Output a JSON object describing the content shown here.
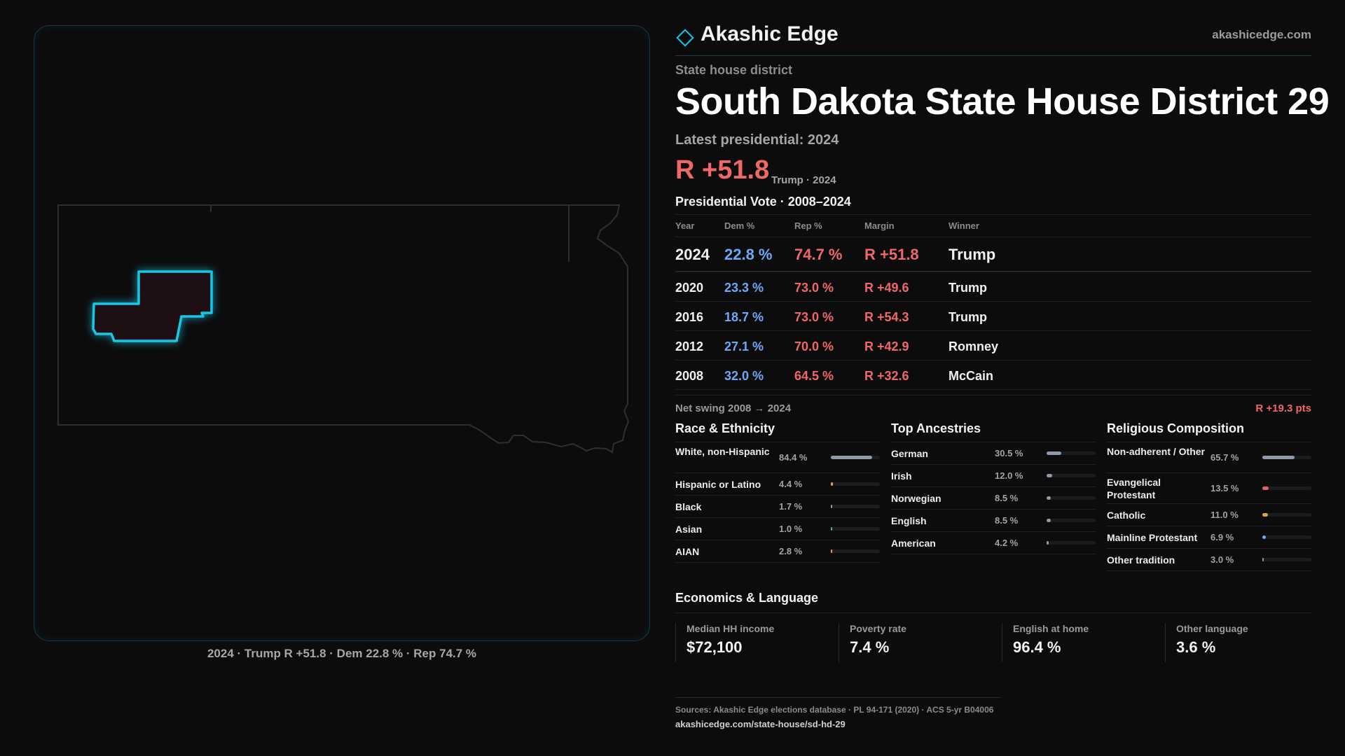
{
  "brand": {
    "name": "Akashic Edge",
    "url": "akashicedge.com"
  },
  "district": {
    "kicker": "State house district",
    "title": "South Dakota State House District 29",
    "latest_label": "Latest presidential: 2024",
    "margin": "R +51.8",
    "margin_sub": "Trump · 2024"
  },
  "map": {
    "caption": "2024 · Trump R +51.8 · Dem 22.8 % · Rep 74.7 %"
  },
  "presidential": {
    "heading": "Presidential Vote · 2008–2024",
    "columns": [
      "Year",
      "Dem %",
      "Rep %",
      "Margin",
      "Winner"
    ],
    "rows": [
      {
        "year": "2024",
        "dem": "22.8 %",
        "rep": "74.7 %",
        "margin": "R +51.8",
        "winner": "Trump"
      },
      {
        "year": "2020",
        "dem": "23.3 %",
        "rep": "73.0 %",
        "margin": "R +49.6",
        "winner": "Trump"
      },
      {
        "year": "2016",
        "dem": "18.7 %",
        "rep": "73.0 %",
        "margin": "R +54.3",
        "winner": "Trump"
      },
      {
        "year": "2012",
        "dem": "27.1 %",
        "rep": "70.0 %",
        "margin": "R +42.9",
        "winner": "Romney"
      },
      {
        "year": "2008",
        "dem": "32.0 %",
        "rep": "64.5 %",
        "margin": "R +32.6",
        "winner": "McCain"
      }
    ],
    "swing_label": "Net swing 2008 → 2024",
    "swing_value": "R +19.3 pts"
  },
  "race": {
    "heading": "Race & Ethnicity",
    "items": [
      {
        "label": "White, non-Hispanic",
        "value": "84.4 %",
        "pct": 84.4,
        "color": "#8e9aa8"
      },
      {
        "label": "Hispanic or Latino",
        "value": "4.4 %",
        "pct": 4.4,
        "color": "#e0a43a"
      },
      {
        "label": "Black",
        "value": "1.7 %",
        "pct": 1.7,
        "color": "#8e9aa8"
      },
      {
        "label": "Asian",
        "value": "1.0 %",
        "pct": 1.0,
        "color": "#4fb38a"
      },
      {
        "label": "AIAN",
        "value": "2.8 %",
        "pct": 2.8,
        "color": "#e0a43a"
      }
    ]
  },
  "ancestry": {
    "heading": "Top Ancestries",
    "items": [
      {
        "label": "German",
        "value": "30.5 %",
        "pct": 30.5,
        "color": "#8e9aa8"
      },
      {
        "label": "Irish",
        "value": "12.0 %",
        "pct": 12.0,
        "color": "#8e9aa8"
      },
      {
        "label": "Norwegian",
        "value": "8.5 %",
        "pct": 8.5,
        "color": "#8e9aa8"
      },
      {
        "label": "English",
        "value": "8.5 %",
        "pct": 8.5,
        "color": "#8e9aa8"
      },
      {
        "label": "American",
        "value": "4.2 %",
        "pct": 4.2,
        "color": "#8e9aa8"
      }
    ]
  },
  "religion": {
    "heading": "Religious Composition",
    "items": [
      {
        "label": "Non-adherent / Other",
        "value": "65.7 %",
        "pct": 65.7,
        "color": "#8e9aa8"
      },
      {
        "label": "Evangelical Protestant",
        "value": "13.5 %",
        "pct": 13.5,
        "color": "#e45f5f"
      },
      {
        "label": "Catholic",
        "value": "11.0 %",
        "pct": 11.0,
        "color": "#e0a43a"
      },
      {
        "label": "Mainline Protestant",
        "value": "6.9 %",
        "pct": 6.9,
        "color": "#6ea8f7"
      },
      {
        "label": "Other tradition",
        "value": "3.0 %",
        "pct": 3.0,
        "color": "#8e9aa8"
      }
    ]
  },
  "economics": {
    "heading": "Economics & Language",
    "items": [
      {
        "label": "Median HH income",
        "value": "$72,100"
      },
      {
        "label": "Poverty rate",
        "value": "7.4 %"
      },
      {
        "label": "English at home",
        "value": "96.4 %"
      },
      {
        "label": "Other language",
        "value": "3.6 %"
      }
    ]
  },
  "sources": {
    "line1": "Sources: Akashic Edge elections database · PL 94-171 (2020) · ACS 5-yr B04006",
    "line2": "akashicedge.com/state-house/sd-hd-29"
  },
  "colors": {
    "accent": "#19c6e6",
    "republican": "#f06767",
    "democrat": "#6ea8f7"
  }
}
